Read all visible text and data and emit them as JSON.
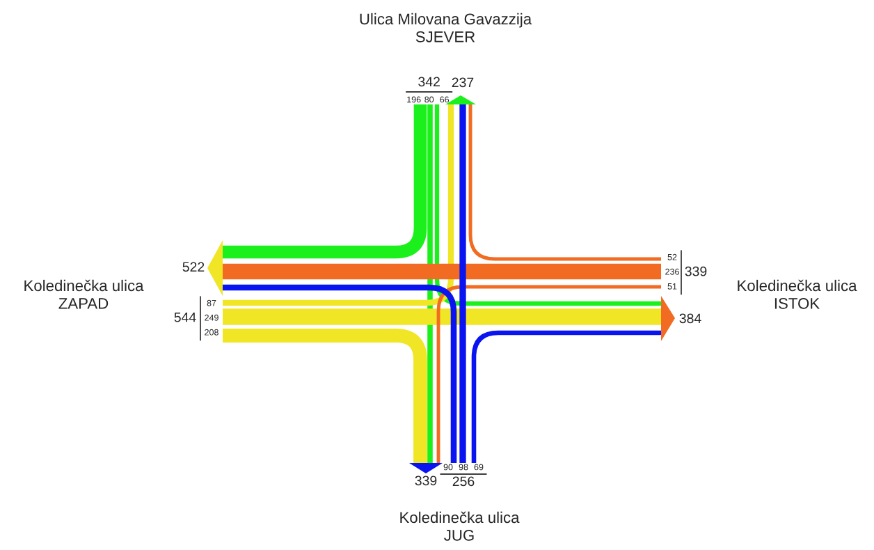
{
  "chart_data": {
    "type": "other",
    "categories": [
      "Ulica Milovana Gavazzija\nSJEVER",
      "Koledinečka ulica\nZAPAD",
      "Koledinečka ulica\nISTOK",
      "Koledinečka ulica\nJUG"
    ],
    "series": [
      {
        "colors": [
          "#1cf01c",
          "#f0e626",
          "#f26b22",
          "#0a14f0"
        ],
        "values": [
          196,
          208,
          52,
          69
        ]
      },
      {
        "colors": [
          "#1cf01c",
          "#f0e626",
          "#f26b22",
          "#0a14f0"
        ],
        "values": [
          80,
          249,
          236,
          98
        ]
      },
      {
        "colors": [
          "#1cf01c",
          "#f0e626",
          "#f26b22",
          "#0a14f0"
        ],
        "values": [
          66,
          87,
          51,
          90
        ]
      }
    ],
    "totals": [
      "342",
      "544",
      "339",
      "256"
    ],
    "annotations": [
      "237",
      "522",
      "384",
      "339"
    ],
    "data_labels": true
  }
}
